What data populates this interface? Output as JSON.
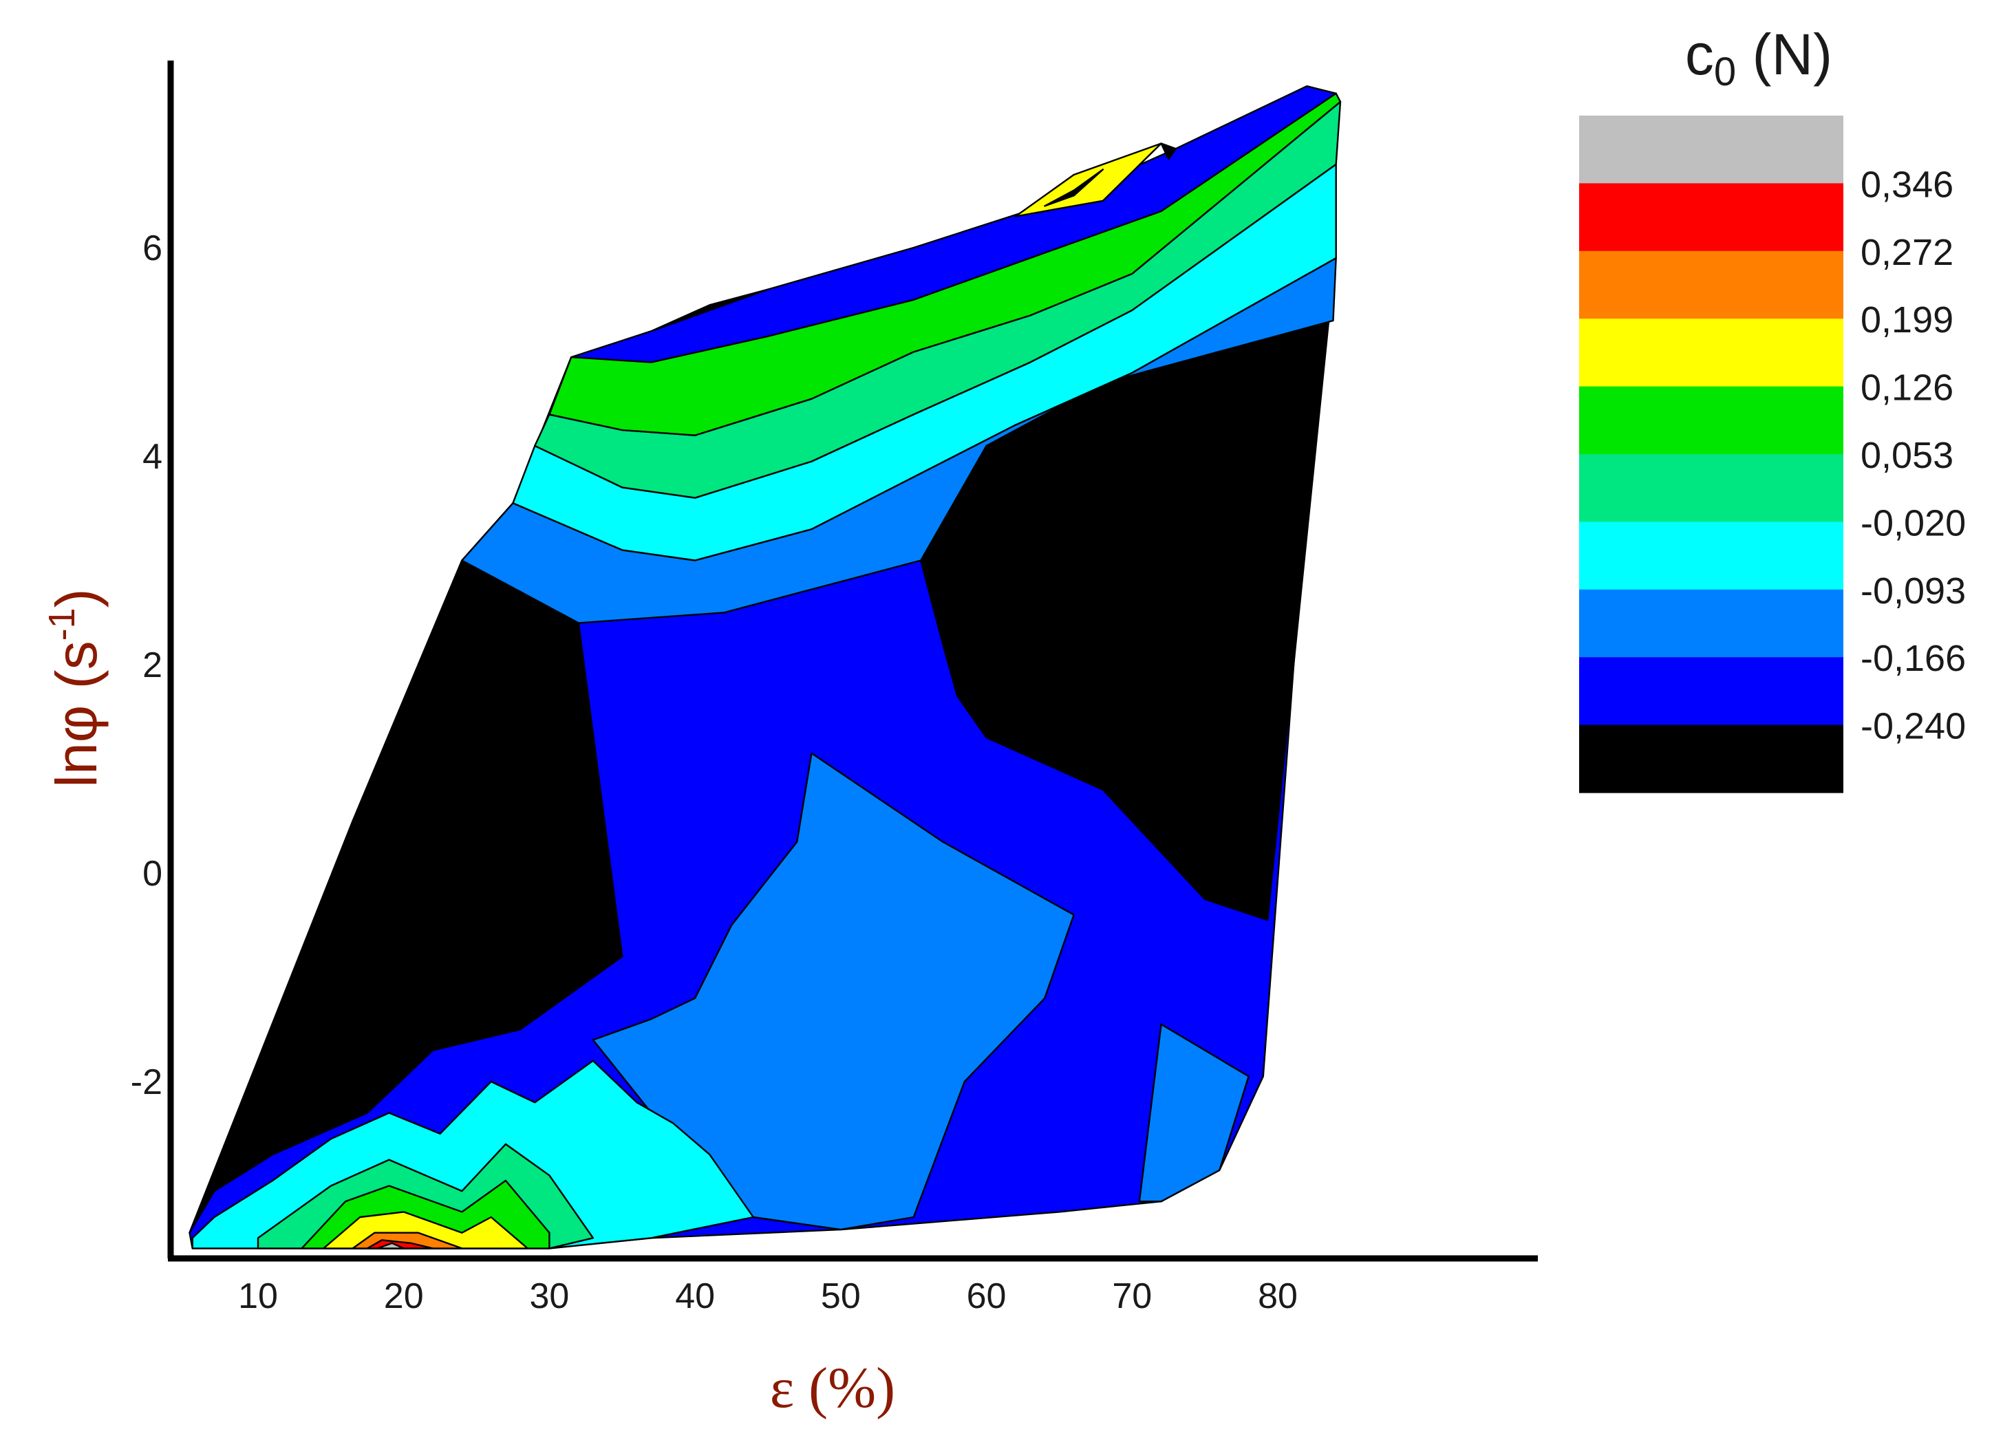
{
  "chart_data": {
    "type": "contour",
    "xlabel": "ε (%)",
    "ylabel_main": "lnφ (s",
    "ylabel_sup": "-1",
    "ylabel_close": ")",
    "xlim": [
      5,
      85
    ],
    "ylim": [
      -3.6,
      7.6
    ],
    "x_ticks": [
      10,
      20,
      30,
      40,
      50,
      60,
      70,
      80
    ],
    "y_ticks": [
      -2,
      0,
      2,
      4,
      6
    ],
    "colorbar": {
      "title_main": "c",
      "title_sub": "0",
      "title_unit": " (N)",
      "levels": [
        "0,346",
        "0,272",
        "0,199",
        "0,126",
        "0,053",
        "-0,020",
        "-0,093",
        "-0,166",
        "-0,240"
      ],
      "colors": [
        "#bfbfbf",
        "#ff0000",
        "#ff8000",
        "#ffff00",
        "#00e600",
        "#00e680",
        "#00ffff",
        "#0080ff",
        "#0000ff",
        "#000000"
      ]
    },
    "domain_boundary": [
      [
        5.3,
        -3.45
      ],
      [
        16.5,
        0.5
      ],
      [
        24,
        3.0
      ],
      [
        27.5,
        3.55
      ],
      [
        31.5,
        4.95
      ],
      [
        37,
        5.2
      ],
      [
        45,
        5.6
      ],
      [
        55,
        6.0
      ],
      [
        65,
        6.45
      ],
      [
        73,
        6.95
      ],
      [
        82,
        7.55
      ],
      [
        84,
        7.48
      ],
      [
        79,
        -1.95
      ],
      [
        76,
        -2.85
      ],
      [
        72,
        -3.15
      ],
      [
        65,
        -3.25
      ],
      [
        50,
        -3.42
      ],
      [
        37,
        -3.5
      ],
      [
        30,
        -3.6
      ],
      [
        5.5,
        -3.6
      ]
    ],
    "regions": [
      {
        "level": 9,
        "points": [
          [
            5.3,
            -3.45
          ],
          [
            16.5,
            0.5
          ],
          [
            24,
            3.0
          ],
          [
            32,
            2.4
          ],
          [
            35,
            -0.8
          ],
          [
            28,
            -1.5
          ],
          [
            22,
            -1.7
          ],
          [
            17.5,
            -2.3
          ],
          [
            11,
            -2.7
          ],
          [
            7,
            -3.05
          ]
        ]
      },
      {
        "level": 9,
        "points": [
          [
            60,
            4.1
          ],
          [
            68,
            4.7
          ],
          [
            83.5,
            5.3
          ],
          [
            79.3,
            -0.45
          ],
          [
            75,
            -0.25
          ],
          [
            68,
            0.8
          ],
          [
            60,
            1.3
          ],
          [
            58,
            1.7
          ],
          [
            57,
            2.2
          ],
          [
            55.5,
            3.0
          ],
          [
            58,
            3.8
          ]
        ]
      },
      {
        "level": 7,
        "points": [
          [
            48,
            1.15
          ],
          [
            57,
            0.3
          ],
          [
            66,
            -0.4
          ],
          [
            64,
            -1.2
          ],
          [
            58.5,
            -2.0
          ],
          [
            55,
            -3.3
          ],
          [
            50,
            -3.42
          ],
          [
            44,
            -3.3
          ],
          [
            40,
            -2.9
          ],
          [
            37,
            -2.3
          ],
          [
            33,
            -1.6
          ],
          [
            37,
            -1.4
          ],
          [
            40,
            -1.2
          ],
          [
            42.5,
            -0.5
          ],
          [
            47,
            0.3
          ]
        ]
      },
      {
        "level": 7,
        "points": [
          [
            72,
            -1.45
          ],
          [
            78,
            -1.95
          ],
          [
            76,
            -2.85
          ],
          [
            72,
            -3.15
          ],
          [
            70.5,
            -3.15
          ]
        ]
      },
      {
        "level": 6,
        "points": [
          [
            5.5,
            -3.5
          ],
          [
            7,
            -3.3
          ],
          [
            11,
            -2.95
          ],
          [
            15,
            -2.55
          ],
          [
            19,
            -2.3
          ],
          [
            22.5,
            -2.5
          ],
          [
            26,
            -2.0
          ],
          [
            29,
            -2.2
          ],
          [
            33,
            -1.8
          ],
          [
            36,
            -2.2
          ],
          [
            38.5,
            -2.4
          ],
          [
            41,
            -2.7
          ],
          [
            44,
            -3.3
          ],
          [
            37,
            -3.5
          ],
          [
            30,
            -3.6
          ],
          [
            5.5,
            -3.6
          ]
        ]
      },
      {
        "level": 5,
        "points": [
          [
            10,
            -3.5
          ],
          [
            15,
            -3.0
          ],
          [
            19,
            -2.75
          ],
          [
            24,
            -3.05
          ],
          [
            27,
            -2.6
          ],
          [
            30,
            -2.9
          ],
          [
            33,
            -3.5
          ],
          [
            30,
            -3.6
          ],
          [
            10,
            -3.6
          ]
        ]
      },
      {
        "level": 4,
        "points": [
          [
            13,
            -3.6
          ],
          [
            16,
            -3.15
          ],
          [
            19,
            -3.0
          ],
          [
            24,
            -3.25
          ],
          [
            27,
            -2.95
          ],
          [
            30,
            -3.45
          ],
          [
            30,
            -3.6
          ]
        ]
      },
      {
        "level": 3,
        "points": [
          [
            14.5,
            -3.6
          ],
          [
            17,
            -3.3
          ],
          [
            20,
            -3.25
          ],
          [
            24,
            -3.45
          ],
          [
            26,
            -3.3
          ],
          [
            28.5,
            -3.6
          ]
        ]
      },
      {
        "level": 2,
        "points": [
          [
            16.5,
            -3.6
          ],
          [
            18,
            -3.45
          ],
          [
            21,
            -3.45
          ],
          [
            24,
            -3.6
          ]
        ]
      },
      {
        "level": 1,
        "points": [
          [
            17.5,
            -3.6
          ],
          [
            18.5,
            -3.52
          ],
          [
            20.5,
            -3.55
          ],
          [
            22,
            -3.6
          ]
        ]
      },
      {
        "level": 0,
        "points": [
          [
            18.2,
            -3.6
          ],
          [
            19.2,
            -3.55
          ],
          [
            20,
            -3.6
          ]
        ]
      },
      {
        "level": 7,
        "points": [
          [
            27.5,
            3.55
          ],
          [
            35,
            3.1
          ],
          [
            40,
            3.0
          ],
          [
            48,
            3.3
          ],
          [
            55,
            3.8
          ],
          [
            62,
            4.3
          ],
          [
            70,
            4.8
          ],
          [
            84,
            5.9
          ],
          [
            83.8,
            5.3
          ],
          [
            68,
            4.7
          ],
          [
            60,
            4.1
          ],
          [
            55.5,
            3.0
          ],
          [
            42,
            2.5
          ],
          [
            32,
            2.4
          ],
          [
            24,
            3.0
          ]
        ]
      },
      {
        "level": 6,
        "points": [
          [
            29,
            4.1
          ],
          [
            35,
            3.7
          ],
          [
            40,
            3.6
          ],
          [
            48,
            3.95
          ],
          [
            55,
            4.4
          ],
          [
            63,
            4.9
          ],
          [
            70,
            5.4
          ],
          [
            84,
            6.8
          ],
          [
            84,
            5.9
          ],
          [
            70,
            4.8
          ],
          [
            62,
            4.3
          ],
          [
            55,
            3.8
          ],
          [
            48,
            3.3
          ],
          [
            40,
            3.0
          ],
          [
            35,
            3.1
          ],
          [
            27.5,
            3.55
          ]
        ]
      },
      {
        "level": 5,
        "points": [
          [
            30,
            4.4
          ],
          [
            35,
            4.25
          ],
          [
            40,
            4.2
          ],
          [
            48,
            4.55
          ],
          [
            55,
            5.0
          ],
          [
            63,
            5.35
          ],
          [
            70,
            5.75
          ],
          [
            84.3,
            7.4
          ],
          [
            84,
            6.8
          ],
          [
            70,
            5.4
          ],
          [
            63,
            4.9
          ],
          [
            55,
            4.4
          ],
          [
            48,
            3.95
          ],
          [
            40,
            3.6
          ],
          [
            35,
            3.7
          ],
          [
            29,
            4.1
          ]
        ]
      },
      {
        "level": 4,
        "points": [
          [
            31.5,
            4.95
          ],
          [
            37,
            4.9
          ],
          [
            45,
            5.15
          ],
          [
            55,
            5.5
          ],
          [
            65,
            6.0
          ],
          [
            72,
            6.35
          ],
          [
            84,
            7.48
          ],
          [
            84.3,
            7.4
          ],
          [
            70,
            5.75
          ],
          [
            63,
            5.35
          ],
          [
            55,
            5.0
          ],
          [
            48,
            4.55
          ],
          [
            40,
            4.2
          ],
          [
            35,
            4.25
          ],
          [
            30,
            4.4
          ]
        ]
      },
      {
        "level": 3,
        "points": [
          [
            62,
            6.3
          ],
          [
            66,
            6.7
          ],
          [
            72,
            7.0
          ],
          [
            68,
            6.45
          ]
        ]
      },
      {
        "level": 9,
        "points": [
          [
            37,
            5.2
          ],
          [
            45,
            5.6
          ],
          [
            41,
            5.45
          ]
        ]
      },
      {
        "level": 9,
        "points": [
          [
            64,
            6.4
          ],
          [
            66,
            6.55
          ],
          [
            68,
            6.75
          ],
          [
            66,
            6.5
          ]
        ]
      },
      {
        "level": 9,
        "points": [
          [
            72,
            7.0
          ],
          [
            73,
            6.95
          ],
          [
            72.5,
            6.85
          ]
        ]
      }
    ]
  }
}
